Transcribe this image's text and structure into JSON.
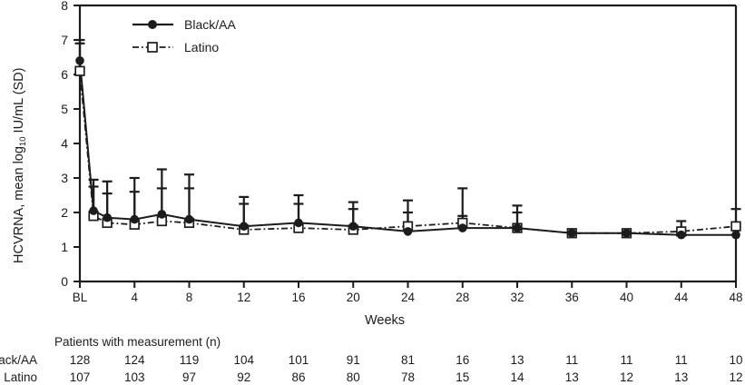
{
  "figure": {
    "y_axis_title_prefix": "HCVRNA, mean log",
    "y_axis_title_sub": "10",
    "y_axis_title_suffix": " IU/mL (SD)",
    "x_axis_title": "Weeks"
  },
  "legend": {
    "items": [
      {
        "name": "Black/AA",
        "marker": "filled-circle-icon",
        "line": "solid"
      },
      {
        "name": "Latino",
        "marker": "open-square-icon",
        "line": "dash-dot"
      }
    ],
    "position": "top-left-inside"
  },
  "colors": {
    "ink": "#1c1c1c",
    "background": "#ffffff"
  },
  "chart_data": {
    "type": "line",
    "title": "",
    "xlabel": "Weeks",
    "ylabel": "HCVRNA, mean log10 IU/mL (SD)",
    "ylim": [
      0,
      8
    ],
    "xlim_weeks": [
      0,
      48
    ],
    "grid": false,
    "yticks": [
      0,
      1,
      2,
      3,
      4,
      5,
      6,
      7,
      8
    ],
    "xtick_weeks": [
      0,
      4,
      8,
      12,
      16,
      20,
      24,
      28,
      32,
      36,
      40,
      44,
      48
    ],
    "xtick_labels": [
      "BL",
      "4",
      "8",
      "12",
      "16",
      "20",
      "24",
      "28",
      "32",
      "36",
      "40",
      "44",
      "48"
    ],
    "x_weeks": [
      0,
      1,
      2,
      4,
      6,
      8,
      12,
      16,
      20,
      24,
      28,
      32,
      36,
      40,
      44,
      48
    ],
    "error_bars": "upper SD, capped",
    "series": [
      {
        "name": "Black/AA",
        "marker": "filled-circle",
        "line": "solid",
        "values": [
          6.4,
          2.05,
          1.85,
          1.8,
          1.95,
          1.8,
          1.6,
          1.7,
          1.6,
          1.45,
          1.55,
          1.55,
          1.4,
          1.4,
          1.35,
          1.35
        ],
        "sd_top": [
          7.0,
          2.95,
          2.9,
          3.0,
          3.25,
          3.1,
          2.45,
          2.5,
          2.3,
          2.0,
          1.9,
          2.2,
          null,
          null,
          null,
          null
        ]
      },
      {
        "name": "Latino",
        "marker": "open-square",
        "line": "dash-dot",
        "values": [
          6.1,
          1.9,
          1.7,
          1.65,
          1.75,
          1.7,
          1.5,
          1.55,
          1.5,
          1.6,
          1.7,
          1.55,
          1.4,
          1.4,
          1.45,
          1.6
        ],
        "sd_top": [
          6.9,
          2.75,
          2.55,
          2.6,
          2.7,
          2.7,
          2.25,
          2.25,
          2.1,
          2.35,
          2.7,
          2.0,
          null,
          null,
          1.75,
          2.1
        ]
      }
    ]
  },
  "table": {
    "header": "Patients with measurement (n)",
    "column_weeks": [
      0,
      4,
      8,
      12,
      16,
      20,
      24,
      28,
      32,
      36,
      40,
      44,
      48
    ],
    "rows": [
      {
        "label": "Black/AA",
        "values": [
          "128",
          "124",
          "119",
          "104",
          "101",
          "91",
          "81",
          "16",
          "13",
          "11",
          "11",
          "11",
          "10"
        ]
      },
      {
        "label": "Latino",
        "values": [
          "107",
          "103",
          "97",
          "92",
          "86",
          "80",
          "78",
          "15",
          "14",
          "13",
          "12",
          "13",
          "12"
        ]
      }
    ]
  }
}
